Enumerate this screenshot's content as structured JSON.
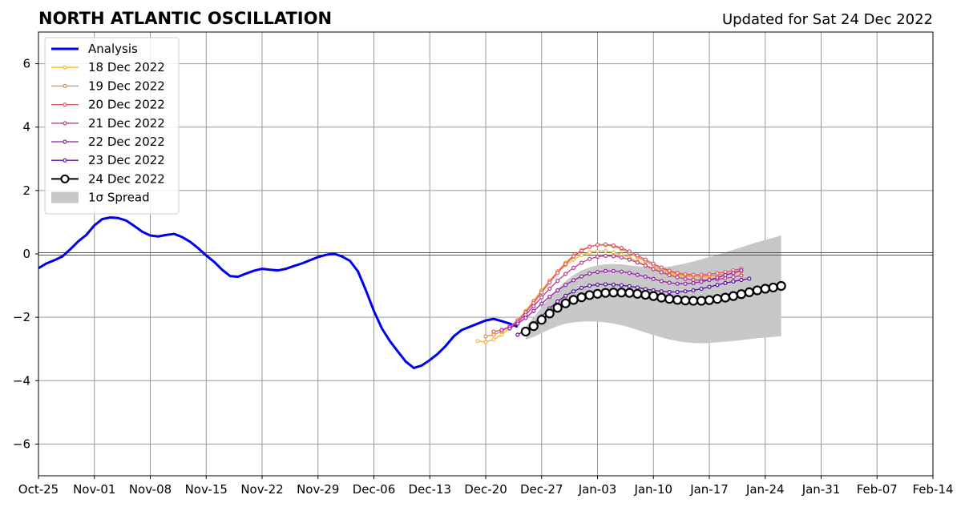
{
  "chart_data": {
    "type": "line",
    "title": "NORTH ATLANTIC OSCILLATION",
    "subtitle": "Updated for Sat 24 Dec 2022",
    "xlabel": "",
    "ylabel": "",
    "xlim": [
      "2022-10-25",
      "2023-02-14"
    ],
    "ylim": [
      -7,
      7
    ],
    "grid": true,
    "legend_position": "top-left",
    "x_tick_labels": [
      "Oct-25",
      "Nov-01",
      "Nov-08",
      "Nov-15",
      "Nov-22",
      "Nov-29",
      "Dec-06",
      "Dec-13",
      "Dec-20",
      "Dec-27",
      "Jan-03",
      "Jan-10",
      "Jan-17",
      "Jan-24",
      "Jan-31",
      "Feb-07",
      "Feb-14"
    ],
    "y_ticks": [
      -6,
      -4,
      -2,
      0,
      2,
      4,
      6
    ],
    "y_tick_labels": [
      "−6",
      "−4",
      "−2",
      "0",
      "2",
      "4",
      "6"
    ],
    "analysis": {
      "name": "Analysis",
      "color": "#0000ee",
      "start": "2022-10-25",
      "values": [
        -0.45,
        -0.3,
        -0.2,
        -0.08,
        0.15,
        0.4,
        0.6,
        0.9,
        1.1,
        1.15,
        1.13,
        1.05,
        0.88,
        0.7,
        0.58,
        0.55,
        0.6,
        0.63,
        0.53,
        0.38,
        0.18,
        -0.05,
        -0.25,
        -0.5,
        -0.7,
        -0.72,
        -0.62,
        -0.53,
        -0.47,
        -0.5,
        -0.52,
        -0.47,
        -0.38,
        -0.3,
        -0.2,
        -0.1,
        -0.03,
        0.01,
        -0.08,
        -0.22,
        -0.55,
        -1.15,
        -1.8,
        -2.35,
        -2.75,
        -3.08,
        -3.4,
        -3.6,
        -3.52,
        -3.35,
        -3.15,
        -2.9,
        -2.6,
        -2.4,
        -2.3,
        -2.2,
        -2.1,
        -2.05,
        -2.12,
        -2.2,
        -2.3
      ]
    },
    "forecasts": [
      {
        "name": "18 Dec 2022",
        "color": "#f5b730",
        "start": "2022-12-19",
        "values": [
          -2.75,
          -2.78,
          -2.7,
          -2.55,
          -2.35,
          -2.1,
          -1.8,
          -1.48,
          -1.15,
          -0.85,
          -0.58,
          -0.35,
          -0.18,
          -0.04,
          0.05,
          0.09,
          0.09,
          0.05,
          -0.02,
          -0.12,
          -0.24,
          -0.35,
          -0.46,
          -0.55,
          -0.62,
          -0.67,
          -0.7,
          -0.71,
          -0.71,
          -0.7,
          -0.68,
          -0.64,
          -0.6,
          -0.55
        ]
      },
      {
        "name": "19 Dec 2022",
        "color": "#ee8a3c",
        "start": "2022-12-20",
        "values": [
          -2.6,
          -2.55,
          -2.45,
          -2.3,
          -2.1,
          -1.82,
          -1.5,
          -1.17,
          -0.85,
          -0.55,
          -0.28,
          -0.05,
          0.12,
          0.23,
          0.28,
          0.28,
          0.24,
          0.15,
          0.03,
          -0.1,
          -0.23,
          -0.36,
          -0.47,
          -0.56,
          -0.63,
          -0.67,
          -0.69,
          -0.7,
          -0.69,
          -0.67,
          -0.64,
          -0.6,
          -0.55
        ]
      },
      {
        "name": "20 Dec 2022",
        "color": "#e0556d",
        "start": "2022-12-21",
        "values": [
          -2.45,
          -2.4,
          -2.3,
          -2.1,
          -1.85,
          -1.55,
          -1.22,
          -0.9,
          -0.6,
          -0.32,
          -0.08,
          0.1,
          0.22,
          0.29,
          0.3,
          0.27,
          0.19,
          0.08,
          -0.05,
          -0.18,
          -0.31,
          -0.43,
          -0.53,
          -0.6,
          -0.64,
          -0.66,
          -0.66,
          -0.64,
          -0.61,
          -0.57,
          -0.52,
          -0.47
        ]
      },
      {
        "name": "21 Dec 2022",
        "color": "#c0398e",
        "start": "2022-12-22",
        "values": [
          -2.4,
          -2.3,
          -2.15,
          -1.92,
          -1.65,
          -1.37,
          -1.1,
          -0.85,
          -0.63,
          -0.44,
          -0.28,
          -0.16,
          -0.09,
          -0.06,
          -0.07,
          -0.11,
          -0.18,
          -0.27,
          -0.37,
          -0.48,
          -0.58,
          -0.67,
          -0.74,
          -0.79,
          -0.82,
          -0.83,
          -0.82,
          -0.8,
          -0.77,
          -0.73,
          -0.68
        ]
      },
      {
        "name": "22 Dec 2022",
        "color": "#951faa",
        "start": "2022-12-23",
        "values": [
          -2.35,
          -2.2,
          -2.02,
          -1.8,
          -1.57,
          -1.35,
          -1.15,
          -0.98,
          -0.83,
          -0.71,
          -0.62,
          -0.57,
          -0.54,
          -0.54,
          -0.56,
          -0.6,
          -0.66,
          -0.72,
          -0.79,
          -0.86,
          -0.91,
          -0.94,
          -0.94,
          -0.92,
          -0.88,
          -0.82,
          -0.75,
          -0.67,
          -0.6,
          -0.52
        ]
      },
      {
        "name": "23 Dec 2022",
        "color": "#5b0aa3",
        "start": "2022-12-24",
        "values": [
          -2.55,
          -2.4,
          -2.2,
          -1.97,
          -1.72,
          -1.5,
          -1.32,
          -1.18,
          -1.07,
          -1.0,
          -0.97,
          -0.96,
          -0.97,
          -0.99,
          -1.02,
          -1.06,
          -1.11,
          -1.15,
          -1.18,
          -1.2,
          -1.2,
          -1.18,
          -1.15,
          -1.1,
          -1.04,
          -0.98,
          -0.92,
          -0.87,
          -0.82,
          -0.78
        ]
      },
      {
        "name": "24 Dec 2022",
        "color": "#000000",
        "start": "2022-12-25",
        "values": [
          -2.45,
          -2.28,
          -2.08,
          -1.88,
          -1.7,
          -1.56,
          -1.45,
          -1.37,
          -1.3,
          -1.26,
          -1.23,
          -1.22,
          -1.22,
          -1.23,
          -1.26,
          -1.29,
          -1.33,
          -1.38,
          -1.42,
          -1.45,
          -1.47,
          -1.48,
          -1.48,
          -1.46,
          -1.42,
          -1.38,
          -1.33,
          -1.27,
          -1.21,
          -1.15,
          -1.1,
          -1.06,
          -1.01
        ]
      }
    ],
    "spread": {
      "name": "1σ Spread",
      "color": "#c8c8c8",
      "start": "2022-12-25",
      "upper": [
        -2.3,
        -2.0,
        -1.68,
        -1.37,
        -1.1,
        -0.86,
        -0.67,
        -0.52,
        -0.42,
        -0.36,
        -0.33,
        -0.32,
        -0.33,
        -0.36,
        -0.39,
        -0.42,
        -0.44,
        -0.43,
        -0.4,
        -0.35,
        -0.3,
        -0.24,
        -0.17,
        -0.1,
        -0.03,
        0.05,
        0.13,
        0.21,
        0.29,
        0.37,
        0.44,
        0.51,
        0.58
      ],
      "lower": [
        -2.7,
        -2.62,
        -2.5,
        -2.38,
        -2.28,
        -2.2,
        -2.16,
        -2.14,
        -2.13,
        -2.14,
        -2.16,
        -2.2,
        -2.25,
        -2.32,
        -2.4,
        -2.48,
        -2.56,
        -2.63,
        -2.7,
        -2.75,
        -2.79,
        -2.81,
        -2.82,
        -2.81,
        -2.79,
        -2.77,
        -2.75,
        -2.72,
        -2.69,
        -2.66,
        -2.64,
        -2.62,
        -2.6
      ]
    }
  }
}
